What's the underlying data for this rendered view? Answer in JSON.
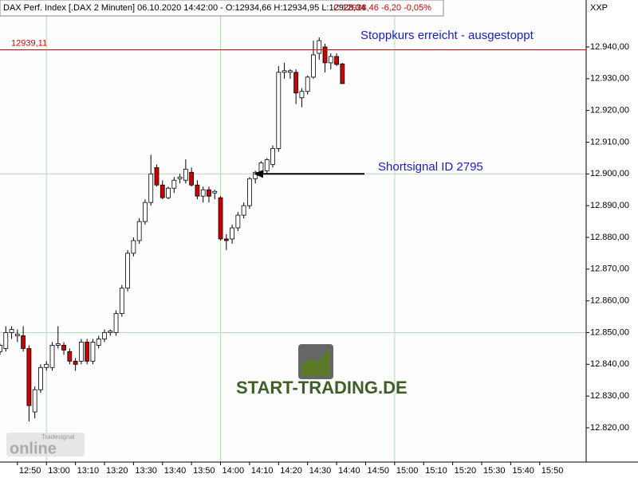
{
  "chart_data": {
    "type": "candlestick",
    "title": "DAX Perf. Index [.DAX  2 Minuten] 06.10.2020 14:42:00 - O:12934,66 H:12934,95 L:12928,34",
    "title_change": "C:12928,46 -6,20 -0,05%",
    "axis_label": "XXP",
    "watermark": "START-TRADING.DE",
    "logo": [
      "Tradesignal",
      "online"
    ],
    "up_color": "#ffffff",
    "down_color": "#cc0000",
    "grid": true,
    "x": [
      "12:44",
      "12:46",
      "12:48",
      "12:50",
      "12:52",
      "12:54",
      "12:56",
      "12:58",
      "13:00",
      "13:02",
      "13:04",
      "13:06",
      "13:08",
      "13:10",
      "13:12",
      "13:14",
      "13:16",
      "13:18",
      "13:20",
      "13:22",
      "13:24",
      "13:26",
      "13:28",
      "13:30",
      "13:32",
      "13:34",
      "13:36",
      "13:38",
      "13:40",
      "13:42",
      "13:44",
      "13:46",
      "13:48",
      "13:50",
      "13:52",
      "13:54",
      "13:56",
      "13:58",
      "14:00",
      "14:02",
      "14:04",
      "14:06",
      "14:08",
      "14:10",
      "14:12",
      "14:14",
      "14:16",
      "14:18",
      "14:20",
      "14:22",
      "14:24",
      "14:26",
      "14:28",
      "14:30",
      "14:32",
      "14:34",
      "14:36",
      "14:38",
      "14:40",
      "14:42"
    ],
    "open": [
      12844,
      12845,
      12850,
      12849,
      12849,
      12845,
      12825,
      12832,
      12839,
      12839,
      12846,
      12846,
      12844,
      12841,
      12841,
      12847,
      12841,
      12846,
      12848,
      12850,
      12850,
      12856,
      12864,
      12875,
      12879,
      12885,
      12891,
      12902,
      12896.5,
      12892.5,
      12895.5,
      12898.5,
      12898,
      12900.5,
      12896.5,
      12893,
      12895,
      12894,
      12892.5,
      12879.5,
      12879.5,
      12883,
      12887,
      12890,
      12898.5,
      12900.5,
      12901,
      12903,
      12908,
      12932,
      12932,
      12932,
      12924,
      12926,
      12930.5,
      12938,
      12940,
      12935,
      12937,
      12934.66
    ],
    "high": [
      12846.5,
      12852,
      12852,
      12851,
      12852,
      12846,
      12833,
      12840,
      12841,
      12847,
      12852,
      12847,
      12845,
      12842,
      12848,
      12848,
      12848,
      12849,
      12851,
      12851,
      12857,
      12865,
      12876,
      12880,
      12886,
      12892,
      12906,
      12903,
      12898,
      12896,
      12899,
      12900,
      12904.6,
      12902,
      12898,
      12896,
      12896,
      12895,
      12893,
      12881,
      12884,
      12888,
      12891,
      12899,
      12901,
      12904,
      12905,
      12909,
      12934,
      12935,
      12933,
      12933,
      12927,
      12931,
      12942,
      12943,
      12941,
      12938,
      12938,
      12934.95
    ],
    "low": [
      12843,
      12844,
      12848,
      12847,
      12844,
      12822,
      12823,
      12831,
      12838,
      12838,
      12845,
      12843,
      12840,
      12838,
      12840,
      12840,
      12840,
      12845,
      12847,
      12849,
      12849,
      12855,
      12863,
      12874,
      12878,
      12884,
      12890,
      12896,
      12892,
      12892,
      12894,
      12897,
      12897,
      12896,
      12892,
      12891,
      12891,
      12892,
      12879,
      12876,
      12878,
      12882,
      12886,
      12889,
      12897,
      12899,
      12900,
      12902,
      12907,
      12930,
      12930,
      12922,
      12921,
      12925,
      12930,
      12936,
      12932,
      12933,
      12934,
      12928.34
    ],
    "close": [
      12846,
      12850,
      12851,
      12849.5,
      12845,
      12827,
      12832,
      12839,
      12840,
      12846,
      12846.5,
      12844.5,
      12841,
      12840,
      12847,
      12841,
      12847,
      12848,
      12850,
      12850.5,
      12856,
      12864,
      12875,
      12879,
      12885,
      12891,
      12900,
      12896.5,
      12892.5,
      12895.5,
      12898,
      12899,
      12901.5,
      12896.5,
      12893,
      12895,
      12893,
      12894.5,
      12879.5,
      12879,
      12883,
      12887,
      12890,
      12898.5,
      12900.5,
      12903.5,
      12904.5,
      12908,
      12932,
      12932.5,
      12932.5,
      12925.5,
      12926,
      12930.5,
      12937.5,
      12942,
      12935,
      12937,
      12934.5,
      12928.46
    ],
    "xlim": [
      "12:44",
      "16:06"
    ],
    "xticks": [
      "12:50",
      "13:00",
      "13:10",
      "13:20",
      "13:30",
      "13:40",
      "13:50",
      "14:00",
      "14:10",
      "14:20",
      "14:30",
      "14:40",
      "14:50",
      "15:00",
      "15:10",
      "15:20",
      "15:30",
      "15:40",
      "15:50"
    ],
    "xgrid": [
      "13:00",
      "14:00",
      "15:00"
    ],
    "ylim": [
      12809.2,
      12954.8
    ],
    "yticks": [
      {
        "value": 12820,
        "label": "12.820,00"
      },
      {
        "value": 12830,
        "label": "12.830,00"
      },
      {
        "value": 12840,
        "label": "12.840,00"
      },
      {
        "value": 12850,
        "label": "12.850,00"
      },
      {
        "value": 12860,
        "label": "12.860,00"
      },
      {
        "value": 12870,
        "label": "12.870,00"
      },
      {
        "value": 12880,
        "label": "12.880,00"
      },
      {
        "value": 12890,
        "label": "12.890,00"
      },
      {
        "value": 12900,
        "label": "12.900,00"
      },
      {
        "value": 12910,
        "label": "12.910,00"
      },
      {
        "value": 12920,
        "label": "12.920,00"
      },
      {
        "value": 12930,
        "label": "12.930,00"
      },
      {
        "value": 12940,
        "label": "12.940,00"
      }
    ],
    "ygrid": [
      12850,
      12900
    ],
    "reference_line": {
      "value": 12939.11,
      "label": "12939,11",
      "color": "#d00000"
    },
    "annotations": [
      {
        "text": "Stoppkurs erreicht - ausgestoppt",
        "color": "#1a1acc"
      },
      {
        "text": "Shortsignal ID 2795",
        "color": "#1a1acc",
        "value": 12900
      }
    ]
  }
}
